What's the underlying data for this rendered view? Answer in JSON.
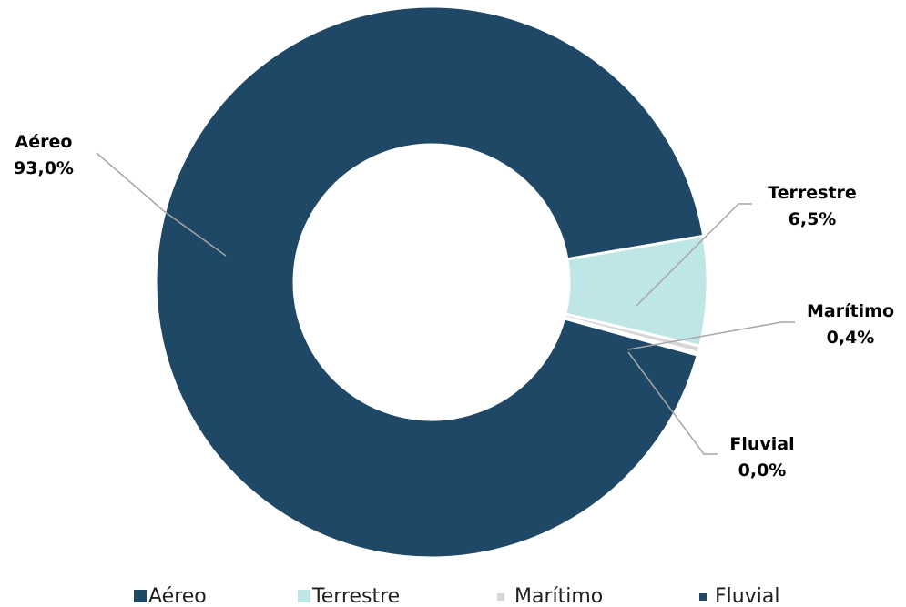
{
  "chart_data": {
    "type": "pie",
    "variant": "donut",
    "categories": [
      "Aéreo",
      "Terrestre",
      "Marítimo",
      "Fluvial"
    ],
    "values": [
      93.0,
      6.5,
      0.4,
      0.04
    ],
    "value_labels": [
      "93,0%",
      "6,5%",
      "0,4%",
      "0,0%"
    ],
    "colors": [
      "#1e4866",
      "#bfe6e6",
      "#d6d6d6",
      "#1e4866"
    ],
    "legend": {
      "position": "bottom",
      "items": [
        "Aéreo",
        "Terrestre",
        "Marítimo",
        "Fluvial"
      ]
    }
  }
}
